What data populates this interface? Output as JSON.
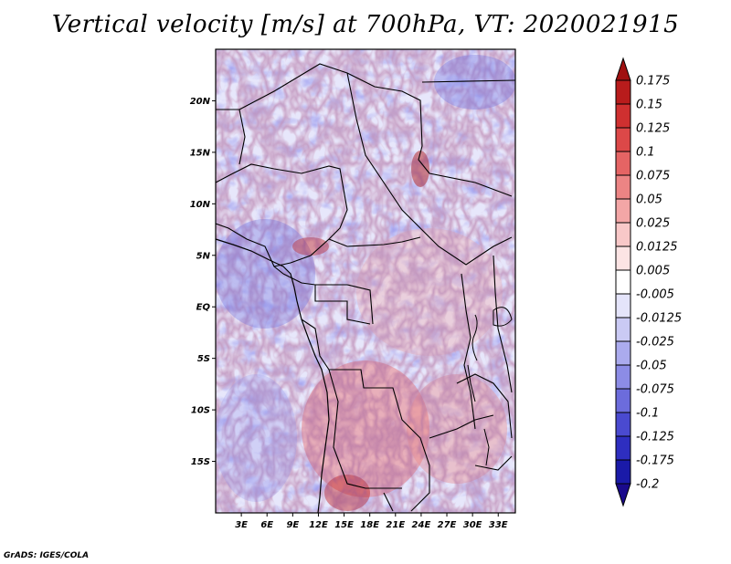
{
  "title": "Vertical velocity [m/s] at 700hPa, VT: 2020021915",
  "credit": "GrADS: IGES/COLA",
  "map": {
    "lat_range": [
      -20,
      25
    ],
    "lon_range": [
      0,
      35
    ],
    "lat_ticks": [
      {
        "lat": 20,
        "label": "20N"
      },
      {
        "lat": 15,
        "label": "15N"
      },
      {
        "lat": 10,
        "label": "10N"
      },
      {
        "lat": 5,
        "label": "5N"
      },
      {
        "lat": 0,
        "label": "EQ"
      },
      {
        "lat": -5,
        "label": "5S"
      },
      {
        "lat": -10,
        "label": "10S"
      },
      {
        "lat": -15,
        "label": "15S"
      }
    ],
    "lon_ticks": [
      {
        "lon": 3,
        "label": "3E"
      },
      {
        "lon": 6,
        "label": "6E"
      },
      {
        "lon": 9,
        "label": "9E"
      },
      {
        "lon": 12,
        "label": "12E"
      },
      {
        "lon": 15,
        "label": "15E"
      },
      {
        "lon": 18,
        "label": "18E"
      },
      {
        "lon": 21,
        "label": "21E"
      },
      {
        "lon": 24,
        "label": "24E"
      },
      {
        "lon": 27,
        "label": "27E"
      },
      {
        "lon": 30,
        "label": "30E"
      },
      {
        "lon": 33,
        "label": "33E"
      }
    ]
  },
  "colorbar": {
    "labels": [
      "0.175",
      "0.15",
      "0.125",
      "0.1",
      "0.075",
      "0.05",
      "0.025",
      "0.0125",
      "0.005",
      "-0.005",
      "-0.0125",
      "-0.025",
      "-0.05",
      "-0.075",
      "-0.1",
      "-0.125",
      "-0.175",
      "-0.2"
    ],
    "colors": [
      "#a01010",
      "#b81c1c",
      "#cf3030",
      "#dc4848",
      "#e56464",
      "#ec8484",
      "#f3a6a6",
      "#f8c8c8",
      "#fce4e4",
      "#ffffff",
      "#e4e4fa",
      "#cacaf4",
      "#ababee",
      "#8c8ce6",
      "#6c6cdc",
      "#4a4ad0",
      "#2e2ec0",
      "#1a1aa8",
      "#0a0a8c"
    ],
    "top_color": "#a01010",
    "bottom_color": "#1a0a8c"
  }
}
